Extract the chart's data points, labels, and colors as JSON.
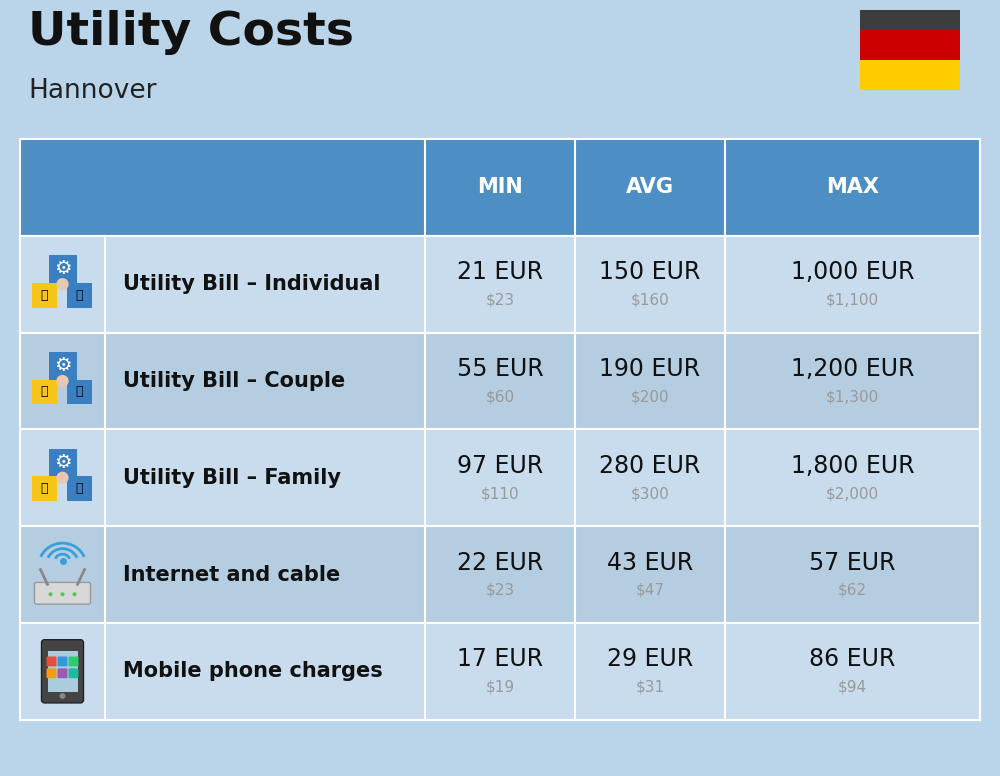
{
  "title": "Utility Costs",
  "subtitle": "Hannover",
  "background_color": "#bad5ea",
  "header_color": "#4d8fc4",
  "header_text_color": "#ffffff",
  "row_colors": [
    "#c8dcee",
    "#b5cde0"
  ],
  "col_headers": [
    "MIN",
    "AVG",
    "MAX"
  ],
  "rows": [
    {
      "label": "Utility Bill – Individual",
      "icon": "utility",
      "min_eur": "21 EUR",
      "min_usd": "$23",
      "avg_eur": "150 EUR",
      "avg_usd": "$160",
      "max_eur": "1,000 EUR",
      "max_usd": "$1,100"
    },
    {
      "label": "Utility Bill – Couple",
      "icon": "utility",
      "min_eur": "55 EUR",
      "min_usd": "$60",
      "avg_eur": "190 EUR",
      "avg_usd": "$200",
      "max_eur": "1,200 EUR",
      "max_usd": "$1,300"
    },
    {
      "label": "Utility Bill – Family",
      "icon": "utility",
      "min_eur": "97 EUR",
      "min_usd": "$110",
      "avg_eur": "280 EUR",
      "avg_usd": "$300",
      "max_eur": "1,800 EUR",
      "max_usd": "$2,000"
    },
    {
      "label": "Internet and cable",
      "icon": "internet",
      "min_eur": "22 EUR",
      "min_usd": "$23",
      "avg_eur": "43 EUR",
      "avg_usd": "$47",
      "max_eur": "57 EUR",
      "max_usd": "$62"
    },
    {
      "label": "Mobile phone charges",
      "icon": "mobile",
      "min_eur": "17 EUR",
      "min_usd": "$19",
      "avg_eur": "29 EUR",
      "avg_usd": "$31",
      "max_eur": "86 EUR",
      "max_usd": "$94"
    }
  ],
  "flag_colors": [
    "#3d3d3d",
    "#cc0000",
    "#ffcc00"
  ],
  "title_fontsize": 34,
  "subtitle_fontsize": 19,
  "header_fontsize": 15,
  "label_fontsize": 15,
  "value_fontsize": 17,
  "subvalue_fontsize": 11
}
